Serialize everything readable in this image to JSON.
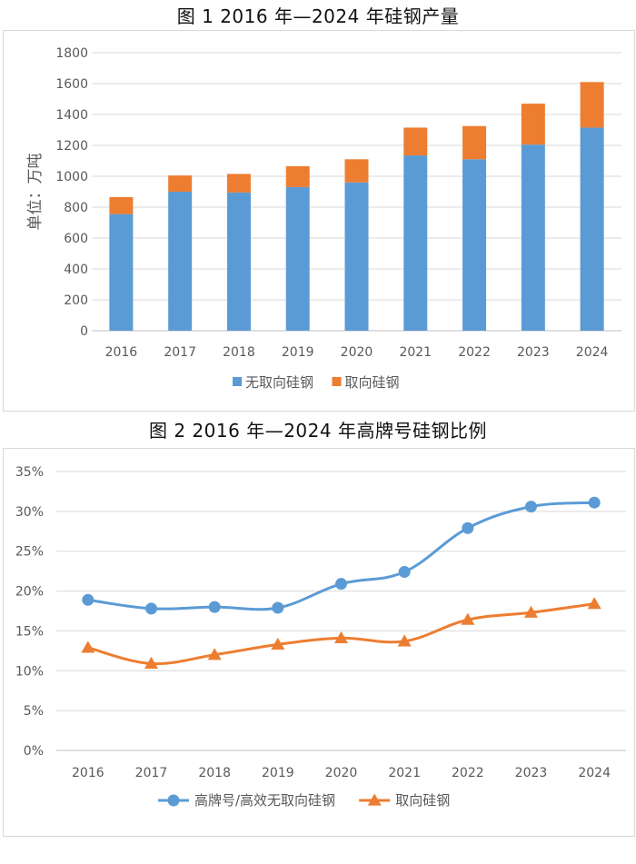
{
  "chart_data": [
    {
      "type": "bar",
      "stacked": true,
      "title": "图 1 2016 年—2024 年硅钢产量",
      "ylabel": "单位：万吨",
      "xlabel": "",
      "categories": [
        "2016",
        "2017",
        "2018",
        "2019",
        "2020",
        "2021",
        "2022",
        "2023",
        "2024"
      ],
      "series": [
        {
          "name": "无取向硅钢",
          "color": "#5b9bd5",
          "values": [
            755,
            900,
            895,
            930,
            960,
            1135,
            1110,
            1205,
            1315
          ]
        },
        {
          "name": "取向硅钢",
          "color": "#ed7d31",
          "values": [
            110,
            105,
            120,
            135,
            150,
            180,
            215,
            265,
            295
          ]
        }
      ],
      "ylim": [
        0,
        1800
      ],
      "yticks": [
        "0",
        "200",
        "400",
        "600",
        "800",
        "1000",
        "1200",
        "1400",
        "1600",
        "1800"
      ],
      "grid": true,
      "legend": "bottom"
    },
    {
      "type": "line",
      "title": "图 2 2016 年—2024 年高牌号硅钢比例",
      "xlabel": "",
      "ylabel": "",
      "categories": [
        "2016",
        "2017",
        "2018",
        "2019",
        "2020",
        "2021",
        "2022",
        "2023",
        "2024"
      ],
      "series": [
        {
          "name": "高牌号/高效无取向硅钢",
          "color": "#5b9bd5",
          "marker": "circle",
          "values": [
            18.9,
            17.8,
            18.0,
            17.9,
            20.9,
            22.4,
            27.9,
            30.6,
            31.1
          ]
        },
        {
          "name": "取向硅钢",
          "color": "#ed7d31",
          "marker": "triangle",
          "values": [
            12.9,
            10.9,
            12.0,
            13.3,
            14.1,
            13.7,
            16.4,
            17.3,
            18.4
          ]
        }
      ],
      "ylim": [
        0,
        35
      ],
      "yticks": [
        "0%",
        "5%",
        "10%",
        "15%",
        "20%",
        "25%",
        "30%",
        "35%"
      ],
      "grid": true,
      "legend": "bottom"
    }
  ]
}
